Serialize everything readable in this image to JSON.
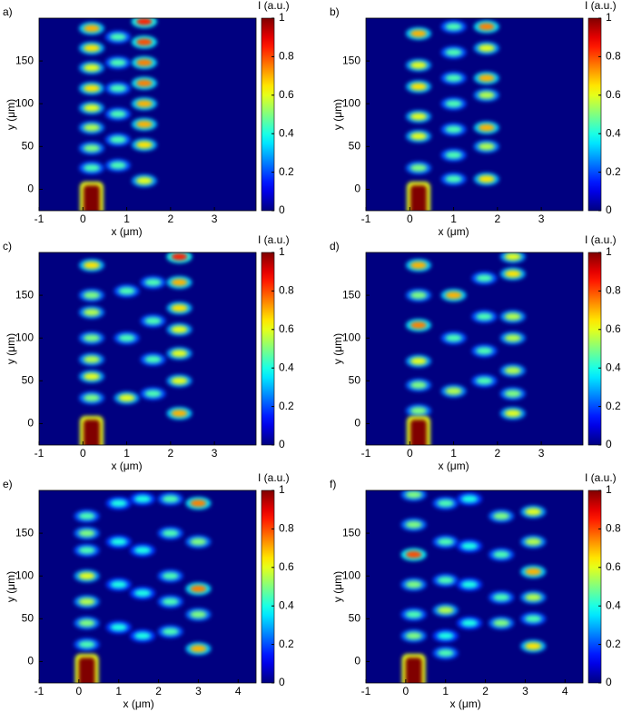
{
  "chart_data": [
    {
      "type": "heatmap",
      "label": "a)",
      "xlabel": "x (μm)",
      "ylabel": "y (μm)",
      "colorbar_label": "I (a.u.)",
      "colormap": "jet",
      "xlim": [
        -1,
        3.95
      ],
      "xticks": [
        -1,
        0,
        1,
        2,
        3
      ],
      "ylim": [
        -25,
        200
      ],
      "yticks": [
        0,
        50,
        100,
        150
      ],
      "clim": [
        0,
        1
      ],
      "cticks": [
        0,
        0.2,
        0.4,
        0.6,
        0.8,
        1
      ],
      "input": {
        "x": 0.2,
        "y": -8,
        "value": 1
      },
      "spots": {
        "x": [
          0.2,
          0.2,
          0.2,
          0.2,
          0.2,
          0.2,
          0.2,
          0.2,
          0.8,
          0.8,
          0.8,
          0.8,
          0.8,
          0.8,
          1.4,
          1.4,
          1.4,
          1.4,
          1.4,
          1.4,
          1.4,
          1.4
        ],
        "y": [
          188,
          165,
          142,
          118,
          95,
          72,
          48,
          25,
          178,
          148,
          118,
          88,
          58,
          28,
          196,
          172,
          148,
          124,
          100,
          76,
          52,
          10
        ],
        "values": [
          0.7,
          0.65,
          0.6,
          0.65,
          0.6,
          0.55,
          0.5,
          0.45,
          0.45,
          0.45,
          0.45,
          0.45,
          0.45,
          0.45,
          0.85,
          0.8,
          0.75,
          0.75,
          0.7,
          0.7,
          0.65,
          0.6
        ]
      }
    },
    {
      "type": "heatmap",
      "label": "b)",
      "xlabel": "x (μm)",
      "ylabel": "y (μm)",
      "colorbar_label": "I (a.u.)",
      "colormap": "jet",
      "xlim": [
        -1,
        3.95
      ],
      "xticks": [
        -1,
        0,
        1,
        2,
        3
      ],
      "ylim": [
        -25,
        200
      ],
      "yticks": [
        0,
        50,
        100,
        150
      ],
      "clim": [
        0,
        1
      ],
      "cticks": [
        0,
        0.2,
        0.4,
        0.6,
        0.8,
        1
      ],
      "input": {
        "x": 0.2,
        "y": -8,
        "value": 1
      },
      "spots": {
        "x": [
          0.2,
          0.2,
          0.2,
          0.2,
          0.2,
          0.2,
          1.0,
          1.0,
          1.0,
          1.0,
          1.0,
          1.0,
          1.0,
          1.75,
          1.75,
          1.75,
          1.75,
          1.75,
          1.75,
          1.75
        ],
        "y": [
          182,
          145,
          120,
          85,
          62,
          25,
          190,
          160,
          130,
          100,
          70,
          40,
          12,
          190,
          165,
          130,
          110,
          72,
          50,
          12
        ],
        "values": [
          0.7,
          0.6,
          0.65,
          0.6,
          0.6,
          0.5,
          0.45,
          0.45,
          0.45,
          0.45,
          0.45,
          0.45,
          0.45,
          0.75,
          0.6,
          0.7,
          0.55,
          0.7,
          0.55,
          0.65
        ]
      }
    },
    {
      "type": "heatmap",
      "label": "c)",
      "xlabel": "x (μm)",
      "ylabel": "y (μm)",
      "colorbar_label": "I (a.u.)",
      "colormap": "jet",
      "xlim": [
        -1,
        3.95
      ],
      "xticks": [
        -1,
        0,
        1,
        2,
        3
      ],
      "ylim": [
        -25,
        200
      ],
      "yticks": [
        0,
        50,
        100,
        150
      ],
      "clim": [
        0,
        1
      ],
      "cticks": [
        0,
        0.2,
        0.4,
        0.6,
        0.8,
        1
      ],
      "input": {
        "x": 0.2,
        "y": -8,
        "value": 1
      },
      "spots": {
        "x": [
          0.2,
          0.2,
          0.2,
          0.2,
          0.2,
          0.2,
          0.2,
          1.0,
          1.0,
          1.0,
          1.6,
          1.6,
          1.6,
          1.6,
          2.2,
          2.2,
          2.2,
          2.2,
          2.2,
          2.2,
          2.2
        ],
        "y": [
          185,
          150,
          130,
          100,
          75,
          55,
          30,
          155,
          100,
          30,
          165,
          120,
          75,
          35,
          195,
          165,
          135,
          110,
          82,
          50,
          12
        ],
        "values": [
          0.65,
          0.5,
          0.55,
          0.5,
          0.55,
          0.6,
          0.5,
          0.45,
          0.45,
          0.6,
          0.45,
          0.45,
          0.45,
          0.45,
          0.85,
          0.7,
          0.65,
          0.6,
          0.6,
          0.6,
          0.7
        ]
      }
    },
    {
      "type": "heatmap",
      "label": "d)",
      "xlabel": "x (μm)",
      "ylabel": "y (μm)",
      "colorbar_label": "I (a.u.)",
      "colormap": "jet",
      "xlim": [
        -1,
        3.95
      ],
      "xticks": [
        -1,
        0,
        1,
        2,
        3
      ],
      "ylim": [
        -25,
        200
      ],
      "yticks": [
        0,
        50,
        100,
        150
      ],
      "clim": [
        0,
        1
      ],
      "cticks": [
        0,
        0.2,
        0.4,
        0.6,
        0.8,
        1
      ],
      "input": {
        "x": 0.2,
        "y": -8,
        "value": 1
      },
      "spots": {
        "x": [
          0.2,
          0.2,
          0.2,
          0.2,
          0.2,
          0.2,
          1.0,
          1.0,
          1.0,
          1.7,
          1.7,
          1.7,
          1.7,
          2.35,
          2.35,
          2.35,
          2.35,
          2.35,
          2.35,
          2.35
        ],
        "y": [
          185,
          150,
          115,
          73,
          45,
          15,
          150,
          100,
          38,
          170,
          125,
          85,
          50,
          195,
          175,
          125,
          100,
          62,
          35,
          12
        ],
        "values": [
          0.7,
          0.5,
          0.75,
          0.6,
          0.5,
          0.5,
          0.7,
          0.45,
          0.55,
          0.45,
          0.45,
          0.45,
          0.45,
          0.6,
          0.65,
          0.55,
          0.55,
          0.55,
          0.5,
          0.6
        ]
      }
    },
    {
      "type": "heatmap",
      "label": "e)",
      "xlabel": "x (μm)",
      "ylabel": "y (μm)",
      "colorbar_label": "I (a.u.)",
      "colormap": "jet",
      "xlim": [
        -1,
        4.45
      ],
      "xticks": [
        -1,
        0,
        1,
        2,
        3,
        4
      ],
      "ylim": [
        -25,
        200
      ],
      "yticks": [
        0,
        50,
        100,
        150
      ],
      "clim": [
        0,
        1
      ],
      "cticks": [
        0,
        0.2,
        0.4,
        0.6,
        0.8,
        1
      ],
      "input": {
        "x": 0.2,
        "y": -8,
        "value": 1
      },
      "spots": {
        "x": [
          0.2,
          0.2,
          0.2,
          0.2,
          0.2,
          0.2,
          0.2,
          1.0,
          1.0,
          1.0,
          1.0,
          1.6,
          1.6,
          1.6,
          1.6,
          2.3,
          2.3,
          2.3,
          2.3,
          2.3,
          3.0,
          3.0,
          3.0,
          3.0,
          3.0
        ],
        "y": [
          170,
          150,
          130,
          100,
          70,
          45,
          20,
          185,
          140,
          90,
          40,
          190,
          130,
          80,
          30,
          190,
          150,
          100,
          70,
          35,
          185,
          140,
          85,
          55,
          15
        ],
        "values": [
          0.45,
          0.5,
          0.45,
          0.6,
          0.55,
          0.5,
          0.45,
          0.4,
          0.4,
          0.4,
          0.4,
          0.4,
          0.4,
          0.4,
          0.4,
          0.45,
          0.45,
          0.45,
          0.45,
          0.45,
          0.75,
          0.5,
          0.75,
          0.5,
          0.7
        ]
      }
    },
    {
      "type": "heatmap",
      "label": "f)",
      "xlabel": "x (μm)",
      "ylabel": "y (μm)",
      "colorbar_label": "I (a.u.)",
      "colormap": "jet",
      "xlim": [
        -1,
        4.45
      ],
      "xticks": [
        -1,
        0,
        1,
        2,
        3,
        4
      ],
      "ylim": [
        -25,
        200
      ],
      "yticks": [
        0,
        50,
        100,
        150
      ],
      "clim": [
        0,
        1
      ],
      "cticks": [
        0,
        0.2,
        0.4,
        0.6,
        0.8,
        1
      ],
      "input": {
        "x": 0.2,
        "y": -8,
        "value": 1
      },
      "spots": {
        "x": [
          0.2,
          0.2,
          0.2,
          0.2,
          0.2,
          0.2,
          1.0,
          1.0,
          1.0,
          1.0,
          1.0,
          1.0,
          1.6,
          1.6,
          1.6,
          1.6,
          2.4,
          2.4,
          2.4,
          2.4,
          3.2,
          3.2,
          3.2,
          3.2,
          3.2,
          3.2
        ],
        "y": [
          195,
          160,
          125,
          90,
          55,
          30,
          185,
          140,
          95,
          60,
          30,
          10,
          190,
          135,
          90,
          45,
          170,
          125,
          75,
          45,
          175,
          140,
          105,
          75,
          50,
          18
        ],
        "values": [
          0.5,
          0.5,
          0.8,
          0.5,
          0.45,
          0.5,
          0.45,
          0.45,
          0.45,
          0.55,
          0.4,
          0.45,
          0.4,
          0.4,
          0.4,
          0.4,
          0.5,
          0.45,
          0.45,
          0.5,
          0.6,
          0.55,
          0.7,
          0.55,
          0.45,
          0.65
        ]
      }
    }
  ]
}
